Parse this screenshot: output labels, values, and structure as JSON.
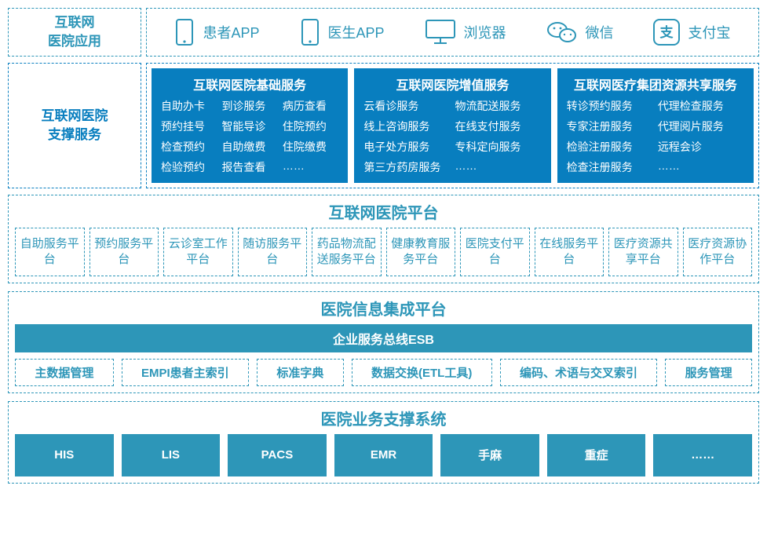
{
  "colors": {
    "teal": "#2d96b8",
    "blue": "#087ebf",
    "white": "#ffffff"
  },
  "row1": {
    "label_line1": "互联网",
    "label_line2": "医院应用",
    "apps": [
      {
        "name": "患者APP",
        "icon": "phone"
      },
      {
        "name": "医生APP",
        "icon": "phone"
      },
      {
        "name": "浏览器",
        "icon": "monitor"
      },
      {
        "name": "微信",
        "icon": "wechat"
      },
      {
        "name": "支付宝",
        "icon": "alipay"
      }
    ]
  },
  "row2": {
    "label_line1": "互联网医院",
    "label_line2": "支撑服务",
    "cards": [
      {
        "title": "互联网医院基础服务",
        "cols": 3,
        "items": [
          "自助办卡",
          "到诊服务",
          "病历查看",
          "预约挂号",
          "智能导诊",
          "住院预约",
          "检查预约",
          "自助缴费",
          "住院缴费",
          "检验预约",
          "报告查看",
          "……"
        ]
      },
      {
        "title": "互联网医院增值服务",
        "cols": 2,
        "items": [
          "云看诊服务",
          "物流配送服务",
          "线上咨询服务",
          "在线支付服务",
          "电子处方服务",
          "专科定向服务",
          "第三方药房服务",
          "……"
        ]
      },
      {
        "title": "互联网医疗集团资源共享服务",
        "cols": 2,
        "items": [
          "转诊预约服务",
          "代理检查服务",
          "专家注册服务",
          "代理阅片服务",
          "检验注册服务",
          "远程会诊",
          "检查注册服务",
          "……"
        ]
      }
    ]
  },
  "section_platform": {
    "title": "互联网医院平台",
    "items": [
      "自助服务平台",
      "预约服务平台",
      "云诊室工作平台",
      "随访服务平台",
      "药品物流配送服务平台",
      "健康教育服务平台",
      "医院支付平台",
      "在线服务平台",
      "医疗资源共享平台",
      "医疗资源协作平台"
    ]
  },
  "section_integration": {
    "title": "医院信息集成平台",
    "esb": "企业服务总线ESB",
    "items": [
      "主数据管理",
      "EMPI患者主索引",
      "标准字典",
      "数据交换(ETL工具)",
      "编码、术语与交叉索引",
      "服务管理"
    ]
  },
  "section_systems": {
    "title": "医院业务支撑系统",
    "items": [
      "HIS",
      "LIS",
      "PACS",
      "EMR",
      "手麻",
      "重症",
      "……"
    ]
  }
}
